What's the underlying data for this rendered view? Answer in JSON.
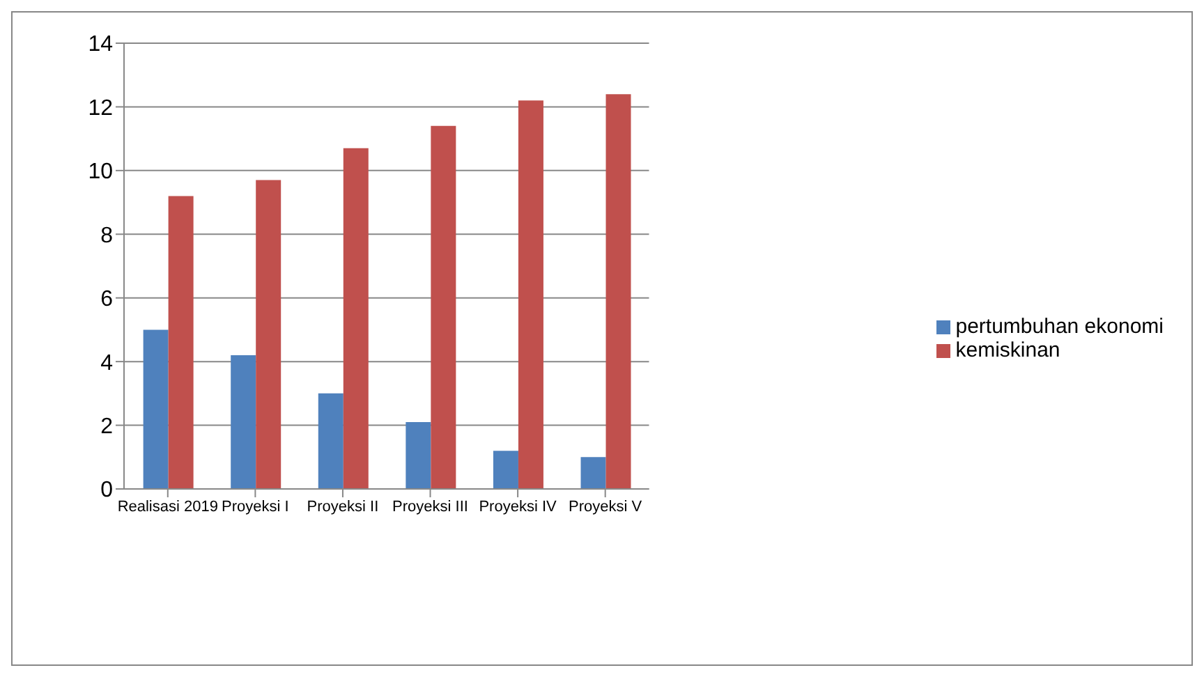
{
  "chart_data": {
    "type": "bar",
    "categories": [
      "Realisasi 2019",
      "Proyeksi I",
      "Proyeksi II",
      "Proyeksi III",
      "Proyeksi IV",
      "Proyeksi V"
    ],
    "series": [
      {
        "name": "pertumbuhan ekonomi",
        "color": "#4f81bd",
        "values": [
          5,
          4.2,
          3,
          2.1,
          1.2,
          1
        ]
      },
      {
        "name": "kemiskinan",
        "color": "#c0504d",
        "values": [
          9.2,
          9.7,
          10.7,
          11.4,
          12.2,
          12.4
        ]
      }
    ],
    "ylim": [
      0,
      14
    ],
    "yticks": [
      0,
      2,
      4,
      6,
      8,
      10,
      12,
      14
    ],
    "grid": "y",
    "legend": "right"
  }
}
